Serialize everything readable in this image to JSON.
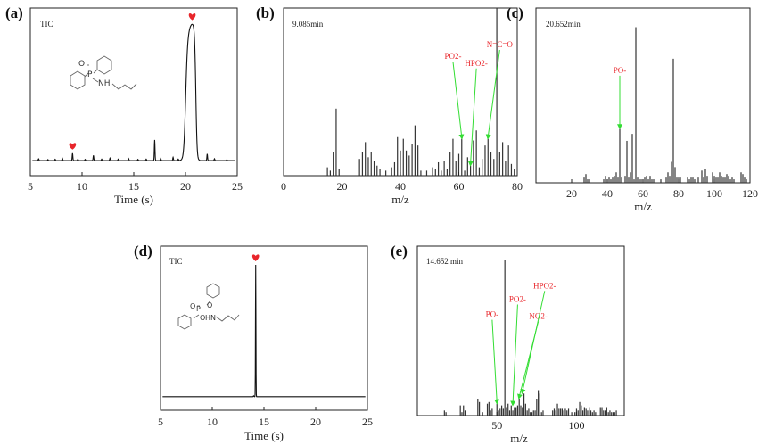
{
  "panels": [
    {
      "id": "a",
      "label": "(a)",
      "type": "line",
      "annotation": "TIC",
      "xlabel": "Time (s)",
      "xlim": [
        5,
        25
      ],
      "xticks": [
        5,
        10,
        15,
        20,
        25
      ],
      "ylim": [
        0,
        100
      ],
      "baseline": 3,
      "peaks": [
        {
          "x": 5.8,
          "y": 4.2
        },
        {
          "x": 6.7,
          "y": 3.7
        },
        {
          "x": 7.4,
          "y": 3.9
        },
        {
          "x": 8.1,
          "y": 4.6
        },
        {
          "x": 9.08,
          "y": 8.0
        },
        {
          "x": 9.6,
          "y": 4.0
        },
        {
          "x": 10.3,
          "y": 3.8
        },
        {
          "x": 11.1,
          "y": 6.5
        },
        {
          "x": 11.9,
          "y": 4.0
        },
        {
          "x": 12.7,
          "y": 4.7
        },
        {
          "x": 13.5,
          "y": 4.0
        },
        {
          "x": 14.5,
          "y": 4.4
        },
        {
          "x": 15.4,
          "y": 3.8
        },
        {
          "x": 16.2,
          "y": 4.0
        },
        {
          "x": 17.02,
          "y": 17.0
        },
        {
          "x": 17.6,
          "y": 4.6
        },
        {
          "x": 18.8,
          "y": 5.2
        },
        {
          "x": 19.3,
          "y": 4.0
        },
        {
          "x": 22.1,
          "y": 7.5
        },
        {
          "x": 22.8,
          "y": 4.3
        },
        {
          "x": 24.0,
          "y": 3.6
        }
      ],
      "main_peak": {
        "x": 20.652,
        "y": 96
      }
    },
    {
      "id": "b",
      "label": "(b)",
      "type": "bar",
      "annotation": "9.085min",
      "xlabel": "m/z",
      "xlim": [
        0,
        80
      ],
      "xticks": [
        0,
        20,
        40,
        60,
        80
      ],
      "ylim": [
        0,
        100
      ],
      "ions": [
        {
          "text": "PO2-",
          "x": 58,
          "y": 27
        },
        {
          "text": "HPO2-",
          "x": 66,
          "y": 23
        },
        {
          "text": "N=C=O",
          "x": 74,
          "y": 34
        }
      ]
    },
    {
      "id": "c",
      "label": "(c)",
      "type": "bar",
      "annotation": "20.652min",
      "xlabel": "m/z",
      "xlim": [
        0,
        120
      ],
      "xticks": [
        20,
        40,
        60,
        80,
        100,
        120
      ],
      "ylim": [
        0,
        100
      ],
      "ions": [
        {
          "text": "PO-",
          "x": 47,
          "y": 22
        }
      ]
    },
    {
      "id": "d",
      "label": "(d)",
      "type": "line",
      "annotation": "TIC",
      "xlabel": "Time (s)",
      "xlim": [
        5,
        25
      ],
      "xticks": [
        5,
        10,
        15,
        20,
        25
      ],
      "ylim": [
        0,
        100
      ],
      "baseline": 2,
      "peaks": [
        {
          "x": 14.0,
          "y": 2.6
        }
      ],
      "main_peak": {
        "x": 14.2,
        "y": 95
      }
    },
    {
      "id": "e",
      "label": "(e)",
      "type": "bar",
      "annotation": "14.652 min",
      "xlabel": "m/z",
      "xlim": [
        0,
        130
      ],
      "xticks": [
        50,
        100
      ],
      "ylim": [
        0,
        100
      ],
      "ions": [
        {
          "text": "PO-",
          "x": 47,
          "y": 16
        },
        {
          "text": "PO2-",
          "x": 63,
          "y": 25
        },
        {
          "text": "NO2-",
          "x": 76,
          "y": 15
        },
        {
          "text": "HPO2-",
          "x": 80,
          "y": 33
        }
      ]
    }
  ],
  "chart_data": [
    {
      "type": "line",
      "panel": "(a)",
      "title": "TIC",
      "xlabel": "Time (s)",
      "ylabel": "",
      "x_range": [
        5,
        25
      ],
      "peaks": [
        {
          "time": 9.085,
          "relative_intensity": 8,
          "marked": true
        },
        {
          "time": 17.0,
          "relative_intensity": 17
        },
        {
          "time": 20.652,
          "relative_intensity": 96,
          "marked": true
        }
      ]
    },
    {
      "type": "bar",
      "panel": "(b)",
      "title": "9.085min",
      "xlabel": "m/z",
      "ylabel": "",
      "x_range": [
        0,
        80
      ],
      "mz": [
        15,
        16,
        17,
        18,
        19,
        26,
        27,
        28,
        29,
        30,
        31,
        32,
        33,
        35,
        37,
        38,
        39,
        40,
        41,
        42,
        43,
        44,
        45,
        46,
        47,
        49,
        51,
        52,
        53,
        54,
        55,
        56,
        57,
        58,
        59,
        60,
        61,
        62,
        63,
        64,
        65,
        66,
        67,
        68,
        69,
        70,
        71,
        72,
        73,
        74,
        75,
        76,
        77,
        78,
        79
      ],
      "intensity": [
        5,
        3,
        14,
        40,
        4,
        10,
        14,
        20,
        11,
        14,
        9,
        6,
        4,
        3,
        5,
        8,
        23,
        15,
        22,
        15,
        12,
        19,
        30,
        18,
        3,
        3,
        5,
        4,
        8,
        3,
        9,
        4,
        14,
        22,
        9,
        13,
        22,
        3,
        11,
        6,
        21,
        27,
        5,
        10,
        18,
        22,
        14,
        10,
        100,
        14,
        20,
        9,
        18,
        7,
        4
      ]
    },
    {
      "type": "bar",
      "panel": "(c)",
      "title": "20.652min",
      "xlabel": "m/z",
      "ylabel": "",
      "x_range": [
        0,
        120
      ],
      "mz": [
        27,
        28,
        29,
        30,
        38,
        39,
        40,
        41,
        42,
        43,
        44,
        45,
        46,
        47,
        48,
        50,
        51,
        52,
        53,
        54,
        55,
        56,
        57,
        58,
        59,
        60,
        61,
        62,
        63,
        64,
        65,
        66,
        70,
        73,
        74,
        75,
        76,
        77,
        78,
        79,
        80,
        81,
        85,
        86,
        87,
        88,
        89,
        91,
        93,
        94,
        95,
        96,
        99,
        100,
        101,
        102,
        103,
        104,
        105,
        106,
        107,
        108,
        109,
        110,
        111,
        115,
        116,
        117,
        118
      ],
      "intensity": [
        3,
        5,
        2,
        2,
        2,
        4,
        2,
        3,
        2,
        3,
        4,
        6,
        3,
        31,
        3,
        4,
        24,
        3,
        6,
        28,
        2,
        89,
        3,
        2,
        2,
        2,
        3,
        4,
        2,
        4,
        2,
        2,
        2,
        3,
        6,
        4,
        12,
        71,
        9,
        3,
        3,
        3,
        3,
        2,
        3,
        3,
        2,
        3,
        7,
        3,
        8,
        4,
        6,
        4,
        3,
        3,
        6,
        4,
        3,
        3,
        5,
        4,
        2,
        3,
        2,
        6,
        5,
        3,
        2
      ]
    },
    {
      "type": "line",
      "panel": "(d)",
      "title": "TIC",
      "xlabel": "Time (s)",
      "ylabel": "",
      "x_range": [
        5,
        25
      ],
      "peaks": [
        {
          "time": 14.2,
          "relative_intensity": 95,
          "marked": true
        }
      ]
    },
    {
      "type": "bar",
      "panel": "(e)",
      "title": "14.652 min",
      "xlabel": "m/z",
      "ylabel": "",
      "x_range": [
        0,
        130
      ],
      "mz": [
        17,
        18,
        27,
        28,
        29,
        30,
        38,
        39,
        41,
        44,
        45,
        46,
        47,
        50,
        51,
        52,
        53,
        54,
        55,
        56,
        57,
        58,
        59,
        60,
        61,
        62,
        63,
        64,
        65,
        66,
        67,
        68,
        69,
        70,
        71,
        72,
        73,
        74,
        75,
        76,
        77,
        78,
        79,
        85,
        86,
        87,
        88,
        89,
        90,
        91,
        92,
        93,
        94,
        95,
        97,
        99,
        100,
        101,
        102,
        103,
        104,
        105,
        106,
        107,
        108,
        109,
        110,
        111,
        112,
        115,
        116,
        117,
        118,
        119,
        120,
        121,
        122,
        123,
        124,
        125
      ],
      "intensity": [
        3,
        2,
        6,
        2,
        6,
        3,
        10,
        8,
        2,
        7,
        8,
        3,
        4,
        7,
        3,
        4,
        6,
        4,
        92,
        5,
        7,
        3,
        6,
        3,
        5,
        5,
        6,
        10,
        6,
        5,
        13,
        7,
        3,
        4,
        2,
        2,
        3,
        3,
        10,
        15,
        13,
        2,
        3,
        3,
        4,
        3,
        7,
        4,
        4,
        4,
        3,
        4,
        3,
        4,
        2,
        2,
        4,
        3,
        8,
        6,
        3,
        5,
        4,
        3,
        5,
        3,
        2,
        3,
        2,
        5,
        5,
        3,
        3,
        5,
        2,
        3,
        2,
        2,
        2,
        3
      ]
    }
  ]
}
